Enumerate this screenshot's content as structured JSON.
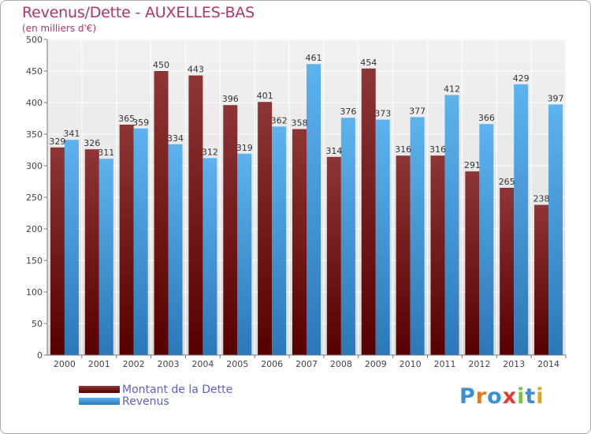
{
  "title": "Revenus/Dette - AUXELLES-BAS",
  "subtitle": "(en milliers d'€)",
  "legend": [
    {
      "label": "Montant de la Dette",
      "color": "#7a1e1e"
    },
    {
      "label": "Revenus",
      "color": "#4aa3e3"
    }
  ],
  "logo": {
    "text": "Proxiti",
    "letters": [
      "P",
      "r",
      "o",
      "x",
      "i",
      "t",
      "i"
    ],
    "colors": [
      "#3b8fd6",
      "#e07a1f",
      "#3b8fd6",
      "#e03a3a",
      "#7cc142",
      "#3b8fd6",
      "#e0a21f"
    ]
  },
  "chart_data": {
    "type": "bar",
    "categories": [
      "2000",
      "2001",
      "2002",
      "2003",
      "2004",
      "2005",
      "2006",
      "2007",
      "2008",
      "2009",
      "2010",
      "2011",
      "2012",
      "2013",
      "2014"
    ],
    "series": [
      {
        "name": "Montant de la Dette",
        "color": "#7a1e1e",
        "values": [
          329,
          326,
          365,
          450,
          443,
          396,
          401,
          358,
          314,
          454,
          316,
          316,
          291,
          265,
          238
        ]
      },
      {
        "name": "Revenus",
        "color": "#4aa3e3",
        "values": [
          341,
          311,
          359,
          334,
          312,
          319,
          362,
          461,
          376,
          373,
          377,
          412,
          366,
          429,
          397
        ]
      }
    ],
    "ylim": [
      0,
      500
    ],
    "yticks": [
      0,
      50,
      100,
      150,
      200,
      250,
      300,
      350,
      400,
      450,
      500
    ],
    "grid": true
  }
}
